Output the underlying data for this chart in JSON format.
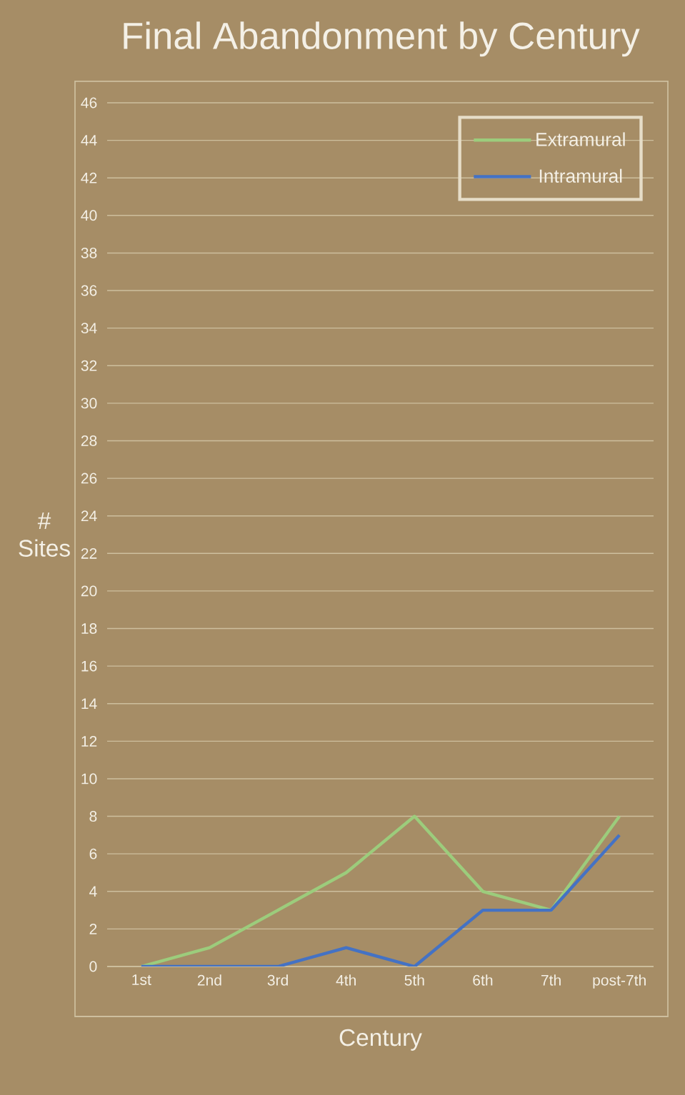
{
  "chart_data": {
    "type": "line",
    "title": "Final Abandonment by Century",
    "xlabel": "Century",
    "ylabel": "# Sites",
    "categories": [
      "1st",
      "2nd",
      "3rd",
      "4th",
      "5th",
      "6th",
      "7th",
      "post-7th"
    ],
    "series": [
      {
        "name": "Extramural",
        "color": "#9ccc7c",
        "values": [
          0,
          1,
          3,
          5,
          8,
          4,
          3,
          8
        ]
      },
      {
        "name": "Intramural",
        "color": "#4472c4",
        "values": [
          0,
          0,
          0,
          1,
          0,
          3,
          3,
          7
        ]
      }
    ],
    "ylim": [
      0,
      46
    ],
    "yticks": [
      0,
      2,
      4,
      6,
      8,
      10,
      12,
      14,
      16,
      18,
      20,
      22,
      24,
      26,
      28,
      30,
      32,
      34,
      36,
      38,
      40,
      42,
      44,
      46
    ],
    "grid": "y",
    "legend": "top right"
  }
}
